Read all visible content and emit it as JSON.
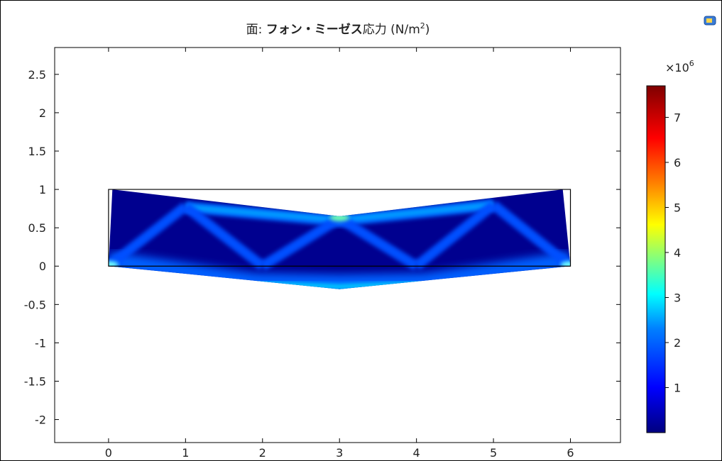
{
  "chart_data": {
    "type": "heatmap",
    "title": "面: フォン・ミーゼス応力 (N/m²)",
    "title_prefix": "面: ",
    "title_bold": "フォン・ミーゼス",
    "title_tail": "応力 (N/m",
    "title_sup": "2",
    "title_close": ")",
    "xlabel": "",
    "ylabel": "",
    "xlim": [
      -0.7,
      6.65
    ],
    "ylim": [
      -2.3,
      2.85
    ],
    "xticks": [
      0,
      1,
      2,
      3,
      4,
      5,
      6
    ],
    "xtick_labels": [
      "0",
      "1",
      "2",
      "3",
      "4",
      "5",
      "6"
    ],
    "yticks": [
      2.5,
      2,
      1.5,
      1,
      0.5,
      0,
      -0.5,
      -1,
      -1.5,
      -2
    ],
    "ytick_labels": [
      "2.5",
      "2",
      "1.5",
      "1",
      "0.5",
      "0",
      "-0.5",
      "-1",
      "-1.5",
      "-2"
    ],
    "grid": false,
    "undeformed_outline": [
      [
        0,
        0
      ],
      [
        6,
        0
      ],
      [
        6,
        1
      ],
      [
        0,
        1
      ]
    ],
    "deformed_outline": [
      [
        0,
        0
      ],
      [
        0.05,
        1.0
      ],
      [
        3,
        0.65
      ],
      [
        5.9,
        1.0
      ],
      [
        6,
        0
      ],
      [
        3,
        -0.3
      ]
    ],
    "colorbar": {
      "multiplier_base": "×10",
      "multiplier_exp": "6",
      "range": [
        0,
        7.7
      ],
      "ticks": [
        1,
        2,
        3,
        4,
        5,
        6,
        7
      ],
      "tick_labels": [
        "1",
        "2",
        "3",
        "4",
        "5",
        "6",
        "7"
      ],
      "colormap": "rainbow"
    },
    "colors": {
      "low": "#00008b",
      "mid": "#00ffff",
      "high": "#8b0000"
    }
  },
  "icons": {
    "corner": "snapshot-icon"
  }
}
